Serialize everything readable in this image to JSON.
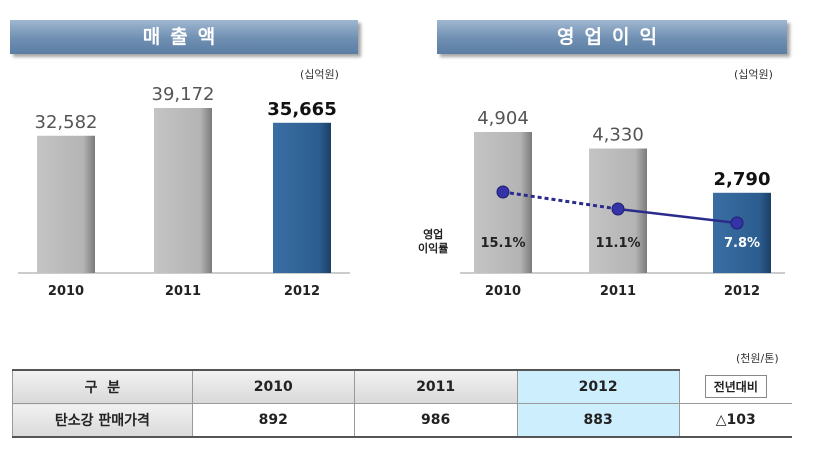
{
  "sales": {
    "banner": "매출액",
    "unit": "(십억원)"
  },
  "profit": {
    "banner": "영업이익",
    "unit": "(십억원)",
    "margin_label_1": "영업",
    "margin_label_2": "이익률"
  },
  "chart_data": [
    {
      "type": "bar",
      "title": "매출액",
      "unit": "(십억원)",
      "categories": [
        "2010",
        "2011",
        "2012"
      ],
      "values": [
        32582,
        39172,
        35665
      ],
      "labels": [
        "32,582",
        "39,172",
        "35,665"
      ],
      "highlight_index": 2,
      "colors": {
        "normal": "#b8b8b8",
        "highlight": "#2e6094"
      }
    },
    {
      "type": "bar",
      "title": "영업이익",
      "unit": "(십억원)",
      "categories": [
        "2010",
        "2011",
        "2012"
      ],
      "values": [
        4904,
        4330,
        2790
      ],
      "labels": [
        "4,904",
        "4,330",
        "2,790"
      ],
      "highlight_index": 2,
      "colors": {
        "normal": "#b8b8b8",
        "highlight": "#2e6094",
        "line": "#2b2b8c"
      },
      "overlay": {
        "type": "line",
        "values": [
          15.1,
          11.1,
          7.8
        ],
        "labels": [
          "15.1%",
          "11.1%",
          "7.8%"
        ]
      }
    }
  ],
  "table": {
    "unit": "(천원/톤)",
    "header": [
      "구  분",
      "2010",
      "2011",
      "2012",
      "전년대비"
    ],
    "row_label": "탄소강 판매가격",
    "row_values": [
      "892",
      "986",
      "883",
      "△103"
    ]
  }
}
